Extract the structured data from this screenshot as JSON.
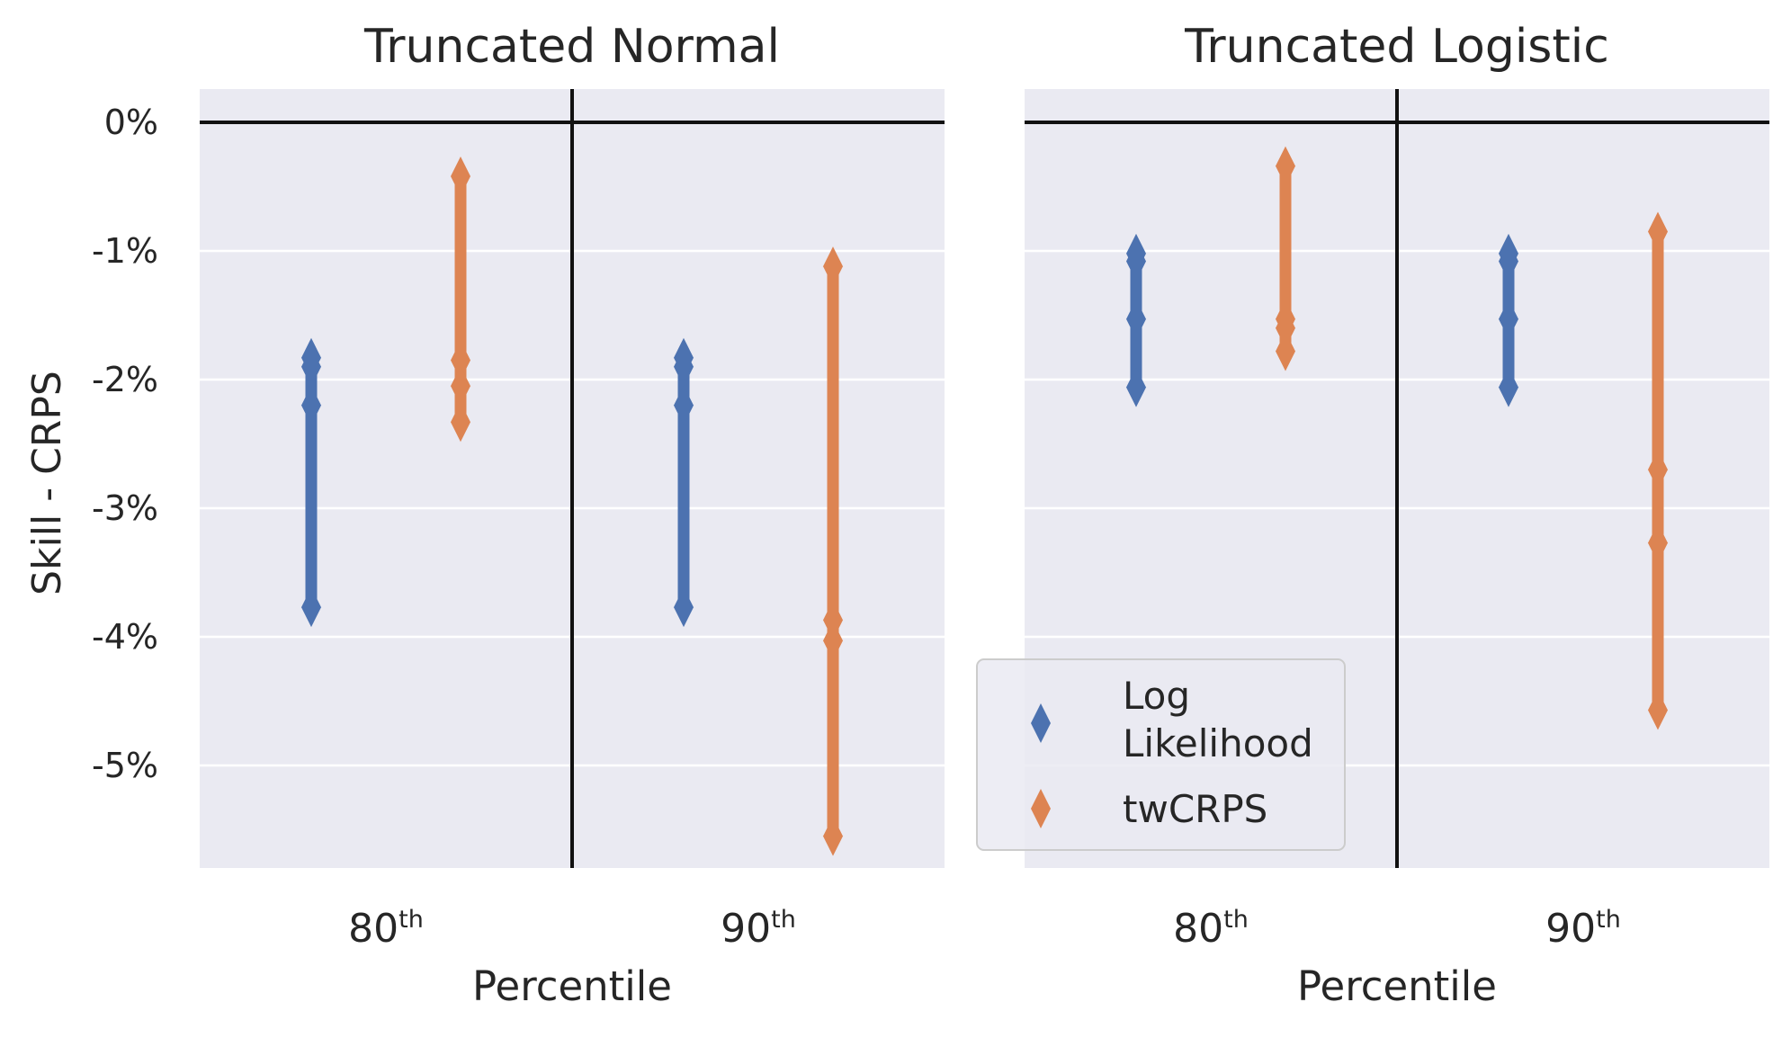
{
  "chart_data": [
    {
      "type": "errorbar",
      "title": "Truncated Normal",
      "xlabel": "Percentile",
      "ylabel": "Skill - CRPS",
      "categories": [
        "80",
        "90"
      ],
      "category_suffix": "th",
      "yticks": [
        "0%",
        "-1%",
        "-2%",
        "-3%",
        "-4%",
        "-5%"
      ],
      "ytick_values": [
        0,
        -1,
        -2,
        -3,
        -4,
        -5
      ],
      "ylim": [
        -5.8,
        0.25
      ],
      "grid": true,
      "series": [
        {
          "name": "Log Likelihood",
          "color": "#4c72b0",
          "points": [
            {
              "category": "80",
              "low": -3.77,
              "high": -1.83,
              "markers": [
                -1.83,
                -1.9,
                -2.2,
                -3.77
              ]
            },
            {
              "category": "90",
              "low": -3.77,
              "high": -1.83,
              "markers": [
                -1.83,
                -1.9,
                -2.2,
                -3.77
              ]
            }
          ]
        },
        {
          "name": "twCRPS",
          "color": "#dd8452",
          "points": [
            {
              "category": "80",
              "low": -2.33,
              "high": -0.42,
              "markers": [
                -0.42,
                -1.85,
                -2.05,
                -2.33
              ]
            },
            {
              "category": "90",
              "low": -5.55,
              "high": -1.12,
              "markers": [
                -1.12,
                -3.87,
                -4.03,
                -5.55
              ]
            }
          ]
        }
      ]
    },
    {
      "type": "errorbar",
      "title": "Truncated Logistic",
      "xlabel": "Percentile",
      "ylabel": "",
      "categories": [
        "80",
        "90"
      ],
      "category_suffix": "th",
      "ylim": [
        -5.8,
        0.25
      ],
      "grid": true,
      "legend": {
        "position": "bottom-left",
        "entries": [
          {
            "label_line1": "Log",
            "label_line2": "Likelihood",
            "color": "#4c72b0"
          },
          {
            "label_line1": "twCRPS",
            "label_line2": "",
            "color": "#dd8452"
          }
        ]
      },
      "series": [
        {
          "name": "Log Likelihood",
          "color": "#4c72b0",
          "points": [
            {
              "category": "80",
              "low": -2.06,
              "high": -1.02,
              "markers": [
                -1.02,
                -1.08,
                -1.53,
                -2.06
              ]
            },
            {
              "category": "90",
              "low": -2.06,
              "high": -1.02,
              "markers": [
                -1.02,
                -1.08,
                -1.53,
                -2.06
              ]
            }
          ]
        },
        {
          "name": "twCRPS",
          "color": "#dd8452",
          "points": [
            {
              "category": "80",
              "low": -1.78,
              "high": -0.34,
              "markers": [
                -0.34,
                -1.53,
                -1.6,
                -1.78
              ]
            },
            {
              "category": "90",
              "low": -4.57,
              "high": -0.85,
              "markers": [
                -0.85,
                -2.7,
                -3.27,
                -4.57
              ]
            }
          ]
        }
      ]
    }
  ]
}
